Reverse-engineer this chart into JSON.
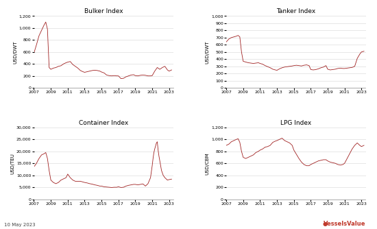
{
  "title_bulker": "Bulker Index",
  "title_tanker": "Tanker Index",
  "title_container": "Container Index",
  "title_lpg": "LPG Index",
  "ylabel_bulker": "USD/DWT",
  "ylabel_tanker": "USD/DWT",
  "ylabel_container": "USD/TEU",
  "ylabel_lpg": "USD/CBM",
  "line_color": "#a02020",
  "background_color": "#ffffff",
  "grid_color": "#dddddd",
  "date_label": "10 May 2023",
  "brand": "VesselsValue",
  "x_ticks": [
    2007,
    2009,
    2011,
    2013,
    2015,
    2017,
    2019,
    2021,
    2023
  ],
  "bulker": {
    "years": [
      2007.0,
      2007.3,
      2007.6,
      2007.9,
      2008.2,
      2008.4,
      2008.6,
      2008.8,
      2009.0,
      2009.3,
      2009.6,
      2009.9,
      2010.2,
      2010.5,
      2010.8,
      2011.0,
      2011.3,
      2011.6,
      2011.9,
      2012.2,
      2012.5,
      2012.8,
      2013.0,
      2013.3,
      2013.6,
      2013.9,
      2014.2,
      2014.5,
      2014.8,
      2015.0,
      2015.3,
      2015.6,
      2015.9,
      2016.2,
      2016.5,
      2016.8,
      2017.0,
      2017.3,
      2017.6,
      2017.9,
      2018.2,
      2018.5,
      2018.8,
      2019.0,
      2019.3,
      2019.6,
      2019.9,
      2020.2,
      2020.5,
      2020.8,
      2021.0,
      2021.3,
      2021.6,
      2021.9,
      2022.2,
      2022.5,
      2022.8,
      2023.0,
      2023.3
    ],
    "values": [
      580,
      720,
      870,
      960,
      1050,
      1100,
      980,
      340,
      310,
      330,
      340,
      360,
      370,
      400,
      420,
      430,
      440,
      390,
      360,
      330,
      290,
      270,
      260,
      270,
      280,
      290,
      295,
      290,
      280,
      265,
      250,
      215,
      205,
      200,
      205,
      200,
      200,
      155,
      160,
      185,
      200,
      215,
      220,
      205,
      200,
      210,
      215,
      210,
      200,
      200,
      205,
      280,
      340,
      310,
      340,
      360,
      300,
      280,
      300
    ]
  },
  "tanker": {
    "years": [
      2007.0,
      2007.3,
      2007.6,
      2007.9,
      2008.2,
      2008.4,
      2008.6,
      2008.8,
      2009.0,
      2009.3,
      2009.6,
      2009.9,
      2010.2,
      2010.5,
      2010.8,
      2011.0,
      2011.3,
      2011.6,
      2011.9,
      2012.2,
      2012.5,
      2012.8,
      2013.0,
      2013.3,
      2013.6,
      2013.9,
      2014.2,
      2014.5,
      2014.8,
      2015.0,
      2015.3,
      2015.6,
      2015.9,
      2016.2,
      2016.5,
      2016.8,
      2017.0,
      2017.3,
      2017.6,
      2017.9,
      2018.2,
      2018.5,
      2018.8,
      2019.0,
      2019.3,
      2019.6,
      2019.9,
      2020.2,
      2020.5,
      2020.8,
      2021.0,
      2021.3,
      2021.6,
      2021.9,
      2022.2,
      2022.5,
      2022.8,
      2023.0,
      2023.3
    ],
    "values": [
      640,
      680,
      700,
      710,
      720,
      730,
      710,
      500,
      370,
      360,
      350,
      345,
      340,
      345,
      350,
      340,
      330,
      310,
      295,
      280,
      260,
      250,
      245,
      265,
      280,
      290,
      295,
      300,
      305,
      310,
      315,
      310,
      305,
      315,
      320,
      310,
      255,
      250,
      255,
      265,
      280,
      290,
      310,
      260,
      250,
      255,
      260,
      270,
      275,
      270,
      270,
      275,
      280,
      285,
      300,
      410,
      470,
      500,
      510
    ]
  },
  "container": {
    "years": [
      2007.0,
      2007.3,
      2007.6,
      2007.9,
      2008.2,
      2008.4,
      2008.6,
      2008.8,
      2009.0,
      2009.3,
      2009.6,
      2009.9,
      2010.2,
      2010.5,
      2010.8,
      2011.0,
      2011.3,
      2011.6,
      2011.9,
      2012.2,
      2012.5,
      2012.8,
      2013.0,
      2013.3,
      2013.6,
      2013.9,
      2014.2,
      2014.5,
      2014.8,
      2015.0,
      2015.3,
      2015.6,
      2015.9,
      2016.2,
      2016.5,
      2016.8,
      2017.0,
      2017.3,
      2017.6,
      2017.9,
      2018.2,
      2018.5,
      2018.8,
      2019.0,
      2019.3,
      2019.6,
      2019.9,
      2020.2,
      2020.5,
      2020.8,
      2021.0,
      2021.1,
      2021.2,
      2021.3,
      2021.5,
      2021.6,
      2021.7,
      2021.8,
      2022.0,
      2022.1,
      2022.3,
      2022.5,
      2022.8,
      2023.0,
      2023.3
    ],
    "values": [
      13500,
      15000,
      17000,
      18500,
      19000,
      19500,
      17000,
      12000,
      8000,
      7000,
      6500,
      7000,
      8000,
      8500,
      9000,
      10500,
      9000,
      8000,
      7500,
      7500,
      7500,
      7200,
      7000,
      6800,
      6500,
      6300,
      6000,
      5800,
      5500,
      5500,
      5200,
      5100,
      5000,
      4900,
      5000,
      5000,
      5200,
      4900,
      5000,
      5500,
      5800,
      6000,
      6200,
      6200,
      6000,
      6200,
      6400,
      5500,
      6500,
      9000,
      14000,
      17000,
      19500,
      21000,
      23500,
      24000,
      20500,
      18000,
      14000,
      12000,
      10000,
      9000,
      8000,
      8200,
      8400
    ]
  },
  "lpg": {
    "years": [
      2007.0,
      2007.3,
      2007.6,
      2007.9,
      2008.2,
      2008.4,
      2008.6,
      2008.8,
      2009.0,
      2009.3,
      2009.6,
      2009.9,
      2010.2,
      2010.5,
      2010.8,
      2011.0,
      2011.3,
      2011.6,
      2011.9,
      2012.2,
      2012.5,
      2012.8,
      2013.0,
      2013.3,
      2013.6,
      2013.9,
      2014.2,
      2014.5,
      2014.8,
      2015.0,
      2015.3,
      2015.6,
      2015.9,
      2016.2,
      2016.5,
      2016.8,
      2017.0,
      2017.3,
      2017.6,
      2017.9,
      2018.2,
      2018.5,
      2018.8,
      2019.0,
      2019.3,
      2019.6,
      2019.9,
      2020.2,
      2020.5,
      2020.8,
      2021.0,
      2021.3,
      2021.6,
      2021.9,
      2022.2,
      2022.5,
      2022.8,
      2023.0,
      2023.3
    ],
    "values": [
      900,
      920,
      960,
      980,
      1000,
      1010,
      950,
      800,
      700,
      680,
      700,
      720,
      740,
      780,
      800,
      820,
      840,
      870,
      880,
      900,
      950,
      970,
      980,
      1000,
      1020,
      980,
      960,
      940,
      900,
      820,
      750,
      680,
      620,
      580,
      560,
      560,
      580,
      600,
      620,
      640,
      650,
      660,
      660,
      640,
      620,
      610,
      600,
      580,
      570,
      580,
      600,
      680,
      760,
      840,
      900,
      940,
      900,
      880,
      900
    ]
  },
  "bulker_ylim": [
    0,
    1200
  ],
  "bulker_yticks": [
    0,
    200,
    400,
    600,
    800,
    1000,
    1200
  ],
  "tanker_ylim": [
    0,
    1000
  ],
  "tanker_yticks": [
    0,
    100,
    200,
    300,
    400,
    500,
    600,
    700,
    800,
    900,
    1000
  ],
  "container_ylim": [
    0,
    30000
  ],
  "container_yticks": [
    0,
    5000,
    10000,
    15000,
    20000,
    25000,
    30000
  ],
  "lpg_ylim": [
    0,
    1200
  ],
  "lpg_yticks": [
    0,
    200,
    400,
    600,
    800,
    1000,
    1200
  ]
}
